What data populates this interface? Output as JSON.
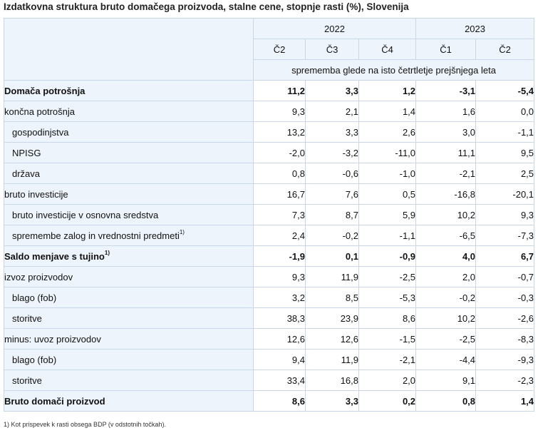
{
  "title": "Izdatkovna struktura bruto domačega proizvoda, stalne cene, stopnje rasti (%), Slovenija",
  "years": [
    {
      "label": "2022",
      "quarters": [
        "Č2",
        "Č3",
        "Č4"
      ]
    },
    {
      "label": "2023",
      "quarters": [
        "Č1",
        "Č2"
      ]
    }
  ],
  "subheader": "sprememba glede na isto četrtletje prejšnjega leta",
  "rows": [
    {
      "label": "Domača potrošnja",
      "sup": "",
      "values": [
        "11,2",
        "3,3",
        "1,2",
        "-3,1",
        "-5,4"
      ]
    },
    {
      "label": "končna potrošnja",
      "sup": "",
      "values": [
        "9,3",
        "2,1",
        "1,4",
        "1,6",
        "0,0"
      ]
    },
    {
      "label": "gospodinjstva",
      "sup": "",
      "values": [
        "13,2",
        "3,3",
        "2,6",
        "3,0",
        "-1,1"
      ]
    },
    {
      "label": "NPISG",
      "sup": "",
      "values": [
        "-2,0",
        "-3,2",
        "-11,0",
        "11,1",
        "9,5"
      ]
    },
    {
      "label": "država",
      "sup": "",
      "values": [
        "0,8",
        "-0,6",
        "-1,0",
        "-2,1",
        "2,5"
      ]
    },
    {
      "label": "bruto investicije",
      "sup": "",
      "values": [
        "16,7",
        "7,6",
        "0,5",
        "-16,8",
        "-20,1"
      ]
    },
    {
      "label": "bruto investicije v osnovna sredstva",
      "sup": "",
      "values": [
        "7,3",
        "8,7",
        "5,9",
        "10,2",
        "9,3"
      ]
    },
    {
      "label": "spremembe zalog in vrednostni predmeti",
      "sup": "1)",
      "values": [
        "2,4",
        "-0,2",
        "-1,1",
        "-6,5",
        "-7,3"
      ]
    },
    {
      "label": "Saldo menjave s tujino",
      "sup": "1)",
      "values": [
        "-1,9",
        "0,1",
        "-0,9",
        "4,0",
        "6,7"
      ]
    },
    {
      "label": "izvoz proizvodov",
      "sup": "",
      "values": [
        "9,3",
        "11,9",
        "-2,5",
        "2,0",
        "-0,7"
      ]
    },
    {
      "label": "blago (fob)",
      "sup": "",
      "values": [
        "3,2",
        "8,5",
        "-5,3",
        "-0,2",
        "-0,3"
      ]
    },
    {
      "label": "storitve",
      "sup": "",
      "values": [
        "38,3",
        "23,9",
        "8,6",
        "10,2",
        "-2,6"
      ]
    },
    {
      "label": "minus: uvoz proizvodov",
      "sup": "",
      "values": [
        "12,6",
        "12,6",
        "-1,5",
        "-2,5",
        "-8,3"
      ]
    },
    {
      "label": "blago (fob)",
      "sup": "",
      "values": [
        "9,4",
        "11,9",
        "-2,1",
        "-4,4",
        "-9,3"
      ]
    },
    {
      "label": "storitve",
      "sup": "",
      "values": [
        "33,4",
        "16,8",
        "2,0",
        "9,1",
        "-2,3"
      ]
    },
    {
      "label": "Bruto domači proizvod",
      "sup": "",
      "values": [
        "8,6",
        "3,3",
        "0,2",
        "0,8",
        "1,4"
      ]
    }
  ],
  "footnote": "1) Kot prispevek k rasti obsega BDP (v odstotnih točkah)."
}
